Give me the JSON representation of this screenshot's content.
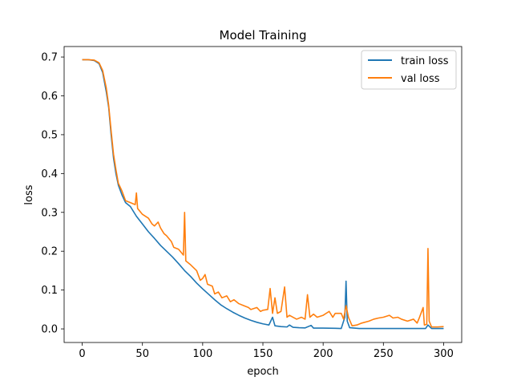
{
  "chart_data": {
    "type": "line",
    "title": "Model Training",
    "xlabel": "epoch",
    "ylabel": "loss",
    "xlim": [
      -15,
      315
    ],
    "ylim": [
      -0.035,
      0.727
    ],
    "xticks": [
      0,
      50,
      100,
      150,
      200,
      250,
      300
    ],
    "yticks": [
      0.0,
      0.1,
      0.2,
      0.3,
      0.4,
      0.5,
      0.6,
      0.7
    ],
    "xtick_labels": [
      "0",
      "50",
      "100",
      "150",
      "200",
      "250",
      "300"
    ],
    "ytick_labels": [
      "0.0",
      "0.1",
      "0.2",
      "0.3",
      "0.4",
      "0.5",
      "0.6",
      "0.7"
    ],
    "grid": false,
    "legend_position": "top-right",
    "series": [
      {
        "name": "train loss",
        "color": "#1f77b4",
        "points": [
          [
            0,
            0.693
          ],
          [
            5,
            0.693
          ],
          [
            10,
            0.691
          ],
          [
            14,
            0.683
          ],
          [
            17,
            0.66
          ],
          [
            20,
            0.61
          ],
          [
            22,
            0.57
          ],
          [
            24,
            0.5
          ],
          [
            26,
            0.44
          ],
          [
            28,
            0.4
          ],
          [
            30,
            0.37
          ],
          [
            33,
            0.345
          ],
          [
            36,
            0.325
          ],
          [
            40,
            0.315
          ],
          [
            45,
            0.29
          ],
          [
            50,
            0.27
          ],
          [
            55,
            0.25
          ],
          [
            60,
            0.233
          ],
          [
            65,
            0.215
          ],
          [
            70,
            0.2
          ],
          [
            75,
            0.185
          ],
          [
            80,
            0.168
          ],
          [
            85,
            0.15
          ],
          [
            90,
            0.135
          ],
          [
            95,
            0.118
          ],
          [
            100,
            0.103
          ],
          [
            105,
            0.089
          ],
          [
            110,
            0.075
          ],
          [
            115,
            0.062
          ],
          [
            120,
            0.052
          ],
          [
            125,
            0.043
          ],
          [
            130,
            0.035
          ],
          [
            135,
            0.028
          ],
          [
            140,
            0.022
          ],
          [
            145,
            0.017
          ],
          [
            150,
            0.013
          ],
          [
            155,
            0.01
          ],
          [
            158,
            0.03
          ],
          [
            160,
            0.008
          ],
          [
            165,
            0.006
          ],
          [
            170,
            0.005
          ],
          [
            172,
            0.01
          ],
          [
            175,
            0.004
          ],
          [
            180,
            0.003
          ],
          [
            185,
            0.0025
          ],
          [
            190,
            0.009
          ],
          [
            192,
            0.002
          ],
          [
            200,
            0.002
          ],
          [
            210,
            0.0015
          ],
          [
            215,
            0.001
          ],
          [
            218,
            0.03
          ],
          [
            219,
            0.123
          ],
          [
            220,
            0.02
          ],
          [
            222,
            0.003
          ],
          [
            230,
            0.001
          ],
          [
            250,
            0.001
          ],
          [
            270,
            0.001
          ],
          [
            285,
            0.001
          ],
          [
            287,
            0.01
          ],
          [
            290,
            0.001
          ],
          [
            300,
            0.001
          ]
        ]
      },
      {
        "name": "val loss",
        "color": "#ff7f0e",
        "points": [
          [
            0,
            0.693
          ],
          [
            5,
            0.693
          ],
          [
            10,
            0.692
          ],
          [
            14,
            0.685
          ],
          [
            17,
            0.665
          ],
          [
            20,
            0.62
          ],
          [
            22,
            0.575
          ],
          [
            24,
            0.51
          ],
          [
            26,
            0.45
          ],
          [
            28,
            0.41
          ],
          [
            30,
            0.375
          ],
          [
            33,
            0.355
          ],
          [
            36,
            0.33
          ],
          [
            40,
            0.325
          ],
          [
            44,
            0.32
          ],
          [
            45,
            0.35
          ],
          [
            46,
            0.31
          ],
          [
            50,
            0.295
          ],
          [
            55,
            0.285
          ],
          [
            58,
            0.27
          ],
          [
            60,
            0.265
          ],
          [
            63,
            0.275
          ],
          [
            65,
            0.26
          ],
          [
            68,
            0.245
          ],
          [
            70,
            0.24
          ],
          [
            74,
            0.225
          ],
          [
            76,
            0.21
          ],
          [
            80,
            0.205
          ],
          [
            84,
            0.19
          ],
          [
            85,
            0.3
          ],
          [
            86,
            0.175
          ],
          [
            90,
            0.165
          ],
          [
            95,
            0.15
          ],
          [
            98,
            0.125
          ],
          [
            100,
            0.13
          ],
          [
            102,
            0.14
          ],
          [
            104,
            0.115
          ],
          [
            108,
            0.11
          ],
          [
            110,
            0.09
          ],
          [
            113,
            0.095
          ],
          [
            116,
            0.08
          ],
          [
            120,
            0.085
          ],
          [
            123,
            0.07
          ],
          [
            126,
            0.075
          ],
          [
            130,
            0.065
          ],
          [
            134,
            0.06
          ],
          [
            138,
            0.055
          ],
          [
            140,
            0.05
          ],
          [
            145,
            0.055
          ],
          [
            148,
            0.045
          ],
          [
            150,
            0.048
          ],
          [
            154,
            0.05
          ],
          [
            156,
            0.104
          ],
          [
            158,
            0.04
          ],
          [
            160,
            0.08
          ],
          [
            162,
            0.04
          ],
          [
            165,
            0.045
          ],
          [
            168,
            0.108
          ],
          [
            170,
            0.03
          ],
          [
            172,
            0.035
          ],
          [
            175,
            0.03
          ],
          [
            178,
            0.025
          ],
          [
            182,
            0.03
          ],
          [
            185,
            0.025
          ],
          [
            187,
            0.088
          ],
          [
            189,
            0.03
          ],
          [
            192,
            0.038
          ],
          [
            195,
            0.03
          ],
          [
            200,
            0.035
          ],
          [
            205,
            0.045
          ],
          [
            208,
            0.03
          ],
          [
            210,
            0.04
          ],
          [
            215,
            0.04
          ],
          [
            217,
            0.025
          ],
          [
            219,
            0.06
          ],
          [
            221,
            0.03
          ],
          [
            224,
            0.008
          ],
          [
            228,
            0.01
          ],
          [
            232,
            0.015
          ],
          [
            238,
            0.02
          ],
          [
            242,
            0.025
          ],
          [
            246,
            0.028
          ],
          [
            250,
            0.03
          ],
          [
            255,
            0.035
          ],
          [
            258,
            0.028
          ],
          [
            262,
            0.03
          ],
          [
            265,
            0.025
          ],
          [
            270,
            0.02
          ],
          [
            275,
            0.025
          ],
          [
            278,
            0.015
          ],
          [
            280,
            0.03
          ],
          [
            283,
            0.055
          ],
          [
            284,
            0.01
          ],
          [
            286,
            0.012
          ],
          [
            287,
            0.207
          ],
          [
            288,
            0.02
          ],
          [
            290,
            0.005
          ],
          [
            295,
            0.005
          ],
          [
            300,
            0.006
          ]
        ]
      }
    ]
  }
}
